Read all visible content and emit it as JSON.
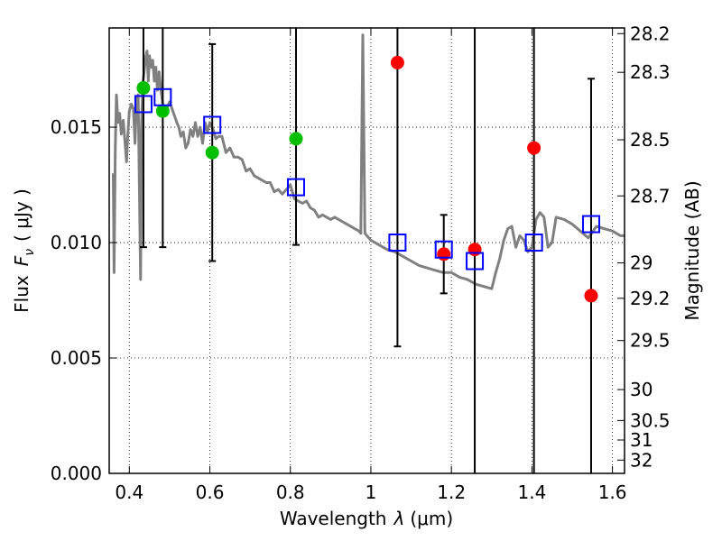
{
  "chart_data": {
    "type": "scatter",
    "title": "",
    "xlabel_text": "Wavelength",
    "xlabel_symbol": "λ",
    "xlabel_unit": "(μm)",
    "ylabel_text": "Flux",
    "ylabel_symbol": "F",
    "ylabel_subscript": "ν",
    "ylabel_unit": "( μJy )",
    "y2label": "Magnitude (AB)",
    "xlim": [
      0.35,
      1.63
    ],
    "ylim": [
      0.0,
      0.0193
    ],
    "grid": true,
    "x_ticks": [
      0.4,
      0.6,
      0.8,
      1.0,
      1.2,
      1.4,
      1.6
    ],
    "x_tick_labels": [
      "0.4",
      "0.6",
      "0.8",
      "1",
      "1.2",
      "1.4",
      "1.6"
    ],
    "y_ticks": [
      0.0,
      0.005,
      0.01,
      0.015
    ],
    "y_tick_labels": [
      "0.000",
      "0.005",
      "0.010",
      "0.015"
    ],
    "y2_ticks": [
      {
        "mag": 28.2,
        "label": "28.2"
      },
      {
        "mag": 28.3,
        "label": "28.3"
      },
      {
        "mag": 28.5,
        "label": "28.5"
      },
      {
        "mag": 28.7,
        "label": "28.7"
      },
      {
        "mag": 29.0,
        "label": "29"
      },
      {
        "mag": 29.2,
        "label": "29.2"
      },
      {
        "mag": 29.5,
        "label": "29.5"
      },
      {
        "mag": 30.0,
        "label": "30"
      },
      {
        "mag": 30.5,
        "label": "30.5"
      },
      {
        "mag": 31.0,
        "label": "31"
      },
      {
        "mag": 32.0,
        "label": "32"
      }
    ],
    "colors": {
      "model": "#808080",
      "detected": "#00bf00",
      "upper": "#ff0000",
      "model_flux": "#0000ff",
      "errorbar": "#000000"
    },
    "series": [
      {
        "name": "Model SED",
        "kind": "line",
        "points": [
          [
            0.36,
            0.013
          ],
          [
            0.362,
            0.0087
          ],
          [
            0.365,
            0.014
          ],
          [
            0.368,
            0.0164
          ],
          [
            0.372,
            0.0152
          ],
          [
            0.376,
            0.0156
          ],
          [
            0.38,
            0.0147
          ],
          [
            0.385,
            0.0153
          ],
          [
            0.39,
            0.0142
          ],
          [
            0.393,
            0.0135
          ],
          [
            0.396,
            0.0146
          ],
          [
            0.4,
            0.0157
          ],
          [
            0.405,
            0.016
          ],
          [
            0.41,
            0.0158
          ],
          [
            0.414,
            0.0143
          ],
          [
            0.418,
            0.0162
          ],
          [
            0.422,
            0.0164
          ],
          [
            0.426,
            0.011
          ],
          [
            0.428,
            0.0084
          ],
          [
            0.43,
            0.015
          ],
          [
            0.434,
            0.017
          ],
          [
            0.437,
            0.0174
          ],
          [
            0.44,
            0.018
          ],
          [
            0.444,
            0.0183
          ],
          [
            0.447,
            0.017
          ],
          [
            0.45,
            0.0181
          ],
          [
            0.454,
            0.0176
          ],
          [
            0.458,
            0.0179
          ],
          [
            0.462,
            0.017
          ],
          [
            0.466,
            0.0176
          ],
          [
            0.47,
            0.0166
          ],
          [
            0.474,
            0.0174
          ],
          [
            0.478,
            0.0167
          ],
          [
            0.483,
            0.016
          ],
          [
            0.488,
            0.0155
          ],
          [
            0.493,
            0.0158
          ],
          [
            0.5,
            0.0161
          ],
          [
            0.506,
            0.0158
          ],
          [
            0.512,
            0.0155
          ],
          [
            0.518,
            0.0152
          ],
          [
            0.523,
            0.015
          ],
          [
            0.528,
            0.0146
          ],
          [
            0.534,
            0.0148
          ],
          [
            0.54,
            0.0141
          ],
          [
            0.546,
            0.0143
          ],
          [
            0.552,
            0.0149
          ],
          [
            0.558,
            0.0146
          ],
          [
            0.564,
            0.0152
          ],
          [
            0.57,
            0.0146
          ],
          [
            0.576,
            0.015
          ],
          [
            0.582,
            0.0143
          ],
          [
            0.588,
            0.0152
          ],
          [
            0.594,
            0.0148
          ],
          [
            0.6,
            0.0152
          ],
          [
            0.608,
            0.0149
          ],
          [
            0.615,
            0.0145
          ],
          [
            0.622,
            0.0146
          ],
          [
            0.63,
            0.0146
          ],
          [
            0.64,
            0.0139
          ],
          [
            0.65,
            0.0141
          ],
          [
            0.66,
            0.0137
          ],
          [
            0.67,
            0.0137
          ],
          [
            0.68,
            0.0136
          ],
          [
            0.69,
            0.0131
          ],
          [
            0.7,
            0.0132
          ],
          [
            0.71,
            0.0129
          ],
          [
            0.72,
            0.0128
          ],
          [
            0.73,
            0.0127
          ],
          [
            0.74,
            0.0126
          ],
          [
            0.75,
            0.0126
          ],
          [
            0.76,
            0.0122
          ],
          [
            0.77,
            0.0123
          ],
          [
            0.78,
            0.0121
          ],
          [
            0.79,
            0.0123
          ],
          [
            0.8,
            0.0125
          ],
          [
            0.81,
            0.0119
          ],
          [
            0.82,
            0.0118
          ],
          [
            0.83,
            0.0117
          ],
          [
            0.84,
            0.0118
          ],
          [
            0.85,
            0.0115
          ],
          [
            0.86,
            0.0114
          ],
          [
            0.87,
            0.0111
          ],
          [
            0.88,
            0.0112
          ],
          [
            0.89,
            0.0111
          ],
          [
            0.9,
            0.011
          ],
          [
            0.91,
            0.0111
          ],
          [
            0.92,
            0.011
          ],
          [
            0.93,
            0.0109
          ],
          [
            0.94,
            0.0108
          ],
          [
            0.95,
            0.0107
          ],
          [
            0.96,
            0.0106
          ],
          [
            0.97,
            0.0105
          ],
          [
            0.975,
            0.0104
          ],
          [
            0.98,
            0.019
          ],
          [
            0.985,
            0.0104
          ],
          [
            0.99,
            0.0103
          ],
          [
            1.0,
            0.0101
          ],
          [
            1.02,
            0.0099
          ],
          [
            1.04,
            0.0097
          ],
          [
            1.06,
            0.0096
          ],
          [
            1.08,
            0.0094
          ],
          [
            1.1,
            0.0092
          ],
          [
            1.12,
            0.009
          ],
          [
            1.14,
            0.0089
          ],
          [
            1.16,
            0.0088
          ],
          [
            1.18,
            0.0087
          ],
          [
            1.2,
            0.0087
          ],
          [
            1.22,
            0.0085
          ],
          [
            1.24,
            0.0084
          ],
          [
            1.26,
            0.0082
          ],
          [
            1.28,
            0.0081
          ],
          [
            1.3,
            0.008
          ],
          [
            1.31,
            0.0087
          ],
          [
            1.32,
            0.0093
          ],
          [
            1.33,
            0.0101
          ],
          [
            1.34,
            0.0106
          ],
          [
            1.35,
            0.0107
          ],
          [
            1.36,
            0.0098
          ],
          [
            1.37,
            0.0103
          ],
          [
            1.38,
            0.0101
          ],
          [
            1.39,
            0.0096
          ],
          [
            1.4,
            0.0098
          ],
          [
            1.41,
            0.011
          ],
          [
            1.42,
            0.0113
          ],
          [
            1.43,
            0.0111
          ],
          [
            1.44,
            0.0098
          ],
          [
            1.45,
            0.01
          ],
          [
            1.46,
            0.0111
          ],
          [
            1.48,
            0.011
          ],
          [
            1.5,
            0.0108
          ],
          [
            1.52,
            0.0105
          ],
          [
            1.54,
            0.0102
          ],
          [
            1.56,
            0.0107
          ],
          [
            1.58,
            0.0106
          ],
          [
            1.6,
            0.0105
          ],
          [
            1.62,
            0.0103
          ],
          [
            1.63,
            0.0103
          ]
        ]
      },
      {
        "name": "Detected (green)",
        "kind": "point",
        "points": [
          [
            0.435,
            0.0167
          ],
          [
            0.483,
            0.0157
          ],
          [
            0.606,
            0.0139
          ],
          [
            0.814,
            0.0145
          ]
        ]
      },
      {
        "name": "Non-detection (red)",
        "kind": "point",
        "points": [
          [
            1.066,
            0.0178
          ],
          [
            1.181,
            0.0095
          ],
          [
            1.258,
            0.0097
          ],
          [
            1.405,
            0.0141
          ],
          [
            1.547,
            0.0077
          ]
        ]
      },
      {
        "name": "Model flux (blue squares)",
        "kind": "square",
        "points": [
          [
            0.435,
            0.016
          ],
          [
            0.483,
            0.0163
          ],
          [
            0.606,
            0.0151
          ],
          [
            0.814,
            0.0124
          ],
          [
            1.066,
            0.01
          ],
          [
            1.181,
            0.0097
          ],
          [
            1.258,
            0.0092
          ],
          [
            1.405,
            0.01
          ],
          [
            1.547,
            0.0108
          ]
        ]
      },
      {
        "name": "Error bars",
        "kind": "errorbar",
        "bars": [
          {
            "x": 0.435,
            "lo": 0.0098,
            "hi": 0.0193,
            "cap_lo": true,
            "cap_hi": false
          },
          {
            "x": 0.483,
            "lo": 0.0098,
            "hi": 0.0193,
            "cap_lo": true,
            "cap_hi": false
          },
          {
            "x": 0.606,
            "lo": 0.0092,
            "hi": 0.0186,
            "cap_lo": true,
            "cap_hi": true
          },
          {
            "x": 0.814,
            "lo": 0.0099,
            "hi": 0.0193,
            "cap_lo": true,
            "cap_hi": false
          },
          {
            "x": 1.066,
            "lo": 0.0055,
            "hi": 0.0193,
            "cap_lo": true,
            "cap_hi": false
          },
          {
            "x": 1.181,
            "lo": 0.0078,
            "hi": 0.0112,
            "cap_lo": true,
            "cap_hi": true
          },
          {
            "x": 1.258,
            "lo": 0.0,
            "hi": 0.0193,
            "cap_lo": false,
            "cap_hi": false
          },
          {
            "x": 1.405,
            "lo": 0.0,
            "hi": 0.0193,
            "cap_lo": false,
            "cap_hi": false
          },
          {
            "x": 1.547,
            "lo": 0.0,
            "hi": 0.0171,
            "cap_lo": false,
            "cap_hi": true
          }
        ]
      }
    ]
  }
}
